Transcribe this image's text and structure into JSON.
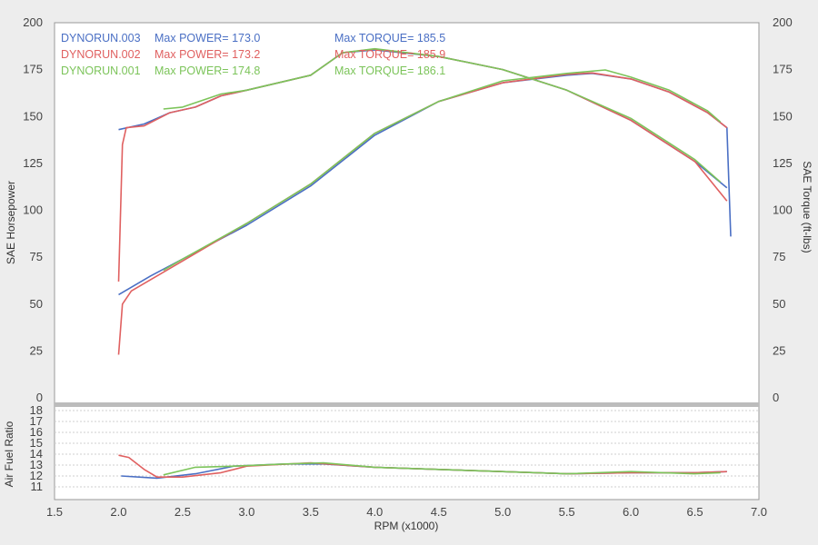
{
  "chart_data": {
    "type": "line",
    "xlabel": "RPM (x1000)",
    "ylabel_left": "SAE Horsepower",
    "ylabel_right": "SAE Torque (ft-lbs)",
    "ylabel_afr": "Air Fuel Ratio",
    "xlim": [
      1.5,
      7.0
    ],
    "x_ticks": [
      "1.5",
      "2.0",
      "2.5",
      "3.0",
      "3.5",
      "4.0",
      "4.5",
      "5.0",
      "5.5",
      "6.0",
      "6.5",
      "7.0"
    ],
    "ylim": [
      0,
      200
    ],
    "y_ticks": [
      "0",
      "25",
      "50",
      "75",
      "100",
      "125",
      "150",
      "175",
      "200"
    ],
    "afr_ylim": [
      10,
      18
    ],
    "afr_ticks": [
      "11",
      "12",
      "13",
      "14",
      "15",
      "16",
      "17",
      "18"
    ],
    "legend": [
      {
        "run": "DYNORUN.003",
        "power": "Max POWER= 173.0",
        "torque": "Max TORQUE= 185.5",
        "color": "#4a6fc4"
      },
      {
        "run": "DYNORUN.002",
        "power": "Max POWER= 173.2",
        "torque": "Max TORQUE= 185.9",
        "color": "#e06060"
      },
      {
        "run": "DYNORUN.001",
        "power": "Max POWER= 174.8",
        "torque": "Max TORQUE= 186.1",
        "color": "#7cc45a"
      }
    ],
    "series": [
      {
        "name": "DYNORUN.003",
        "color": "#4a6fc4",
        "power": [
          [
            2.0,
            55
          ],
          [
            2.25,
            65
          ],
          [
            2.5,
            74
          ],
          [
            3.0,
            92
          ],
          [
            3.5,
            113
          ],
          [
            4.0,
            140
          ],
          [
            4.5,
            158
          ],
          [
            5.0,
            168
          ],
          [
            5.5,
            172
          ],
          [
            5.7,
            173
          ],
          [
            6.0,
            170
          ],
          [
            6.3,
            163
          ],
          [
            6.6,
            152
          ],
          [
            6.75,
            144
          ],
          [
            6.78,
            86
          ]
        ],
        "torque": [
          [
            2.0,
            143
          ],
          [
            2.2,
            146
          ],
          [
            2.4,
            152
          ],
          [
            2.6,
            155
          ],
          [
            2.8,
            161
          ],
          [
            3.0,
            164
          ],
          [
            3.5,
            172
          ],
          [
            3.75,
            184
          ],
          [
            4.0,
            185.5
          ],
          [
            4.5,
            182
          ],
          [
            5.0,
            175
          ],
          [
            5.5,
            164
          ],
          [
            6.0,
            148
          ],
          [
            6.5,
            126
          ],
          [
            6.75,
            112
          ]
        ],
        "afr": [
          [
            2.02,
            12.0
          ],
          [
            2.3,
            11.8
          ],
          [
            2.6,
            12.2
          ],
          [
            2.9,
            12.9
          ],
          [
            3.3,
            13.1
          ],
          [
            3.6,
            13.1
          ],
          [
            4.0,
            12.8
          ],
          [
            4.5,
            12.6
          ],
          [
            5.0,
            12.4
          ],
          [
            5.5,
            12.2
          ],
          [
            6.0,
            12.3
          ],
          [
            6.5,
            12.3
          ],
          [
            6.75,
            12.4
          ]
        ]
      },
      {
        "name": "DYNORUN.002",
        "color": "#e06060",
        "power": [
          [
            2.0,
            23
          ],
          [
            2.03,
            50
          ],
          [
            2.1,
            57
          ],
          [
            2.5,
            73
          ],
          [
            3.0,
            93
          ],
          [
            3.5,
            114
          ],
          [
            4.0,
            141
          ],
          [
            4.5,
            158
          ],
          [
            5.0,
            168
          ],
          [
            5.5,
            172.5
          ],
          [
            5.7,
            173.2
          ],
          [
            6.0,
            170
          ],
          [
            6.3,
            163
          ],
          [
            6.6,
            152
          ],
          [
            6.75,
            144
          ]
        ],
        "torque": [
          [
            2.0,
            62
          ],
          [
            2.03,
            135
          ],
          [
            2.06,
            144
          ],
          [
            2.2,
            145
          ],
          [
            2.4,
            152
          ],
          [
            2.6,
            155
          ],
          [
            2.8,
            161
          ],
          [
            3.0,
            164
          ],
          [
            3.5,
            172
          ],
          [
            3.75,
            184
          ],
          [
            4.0,
            185.9
          ],
          [
            4.5,
            182
          ],
          [
            5.0,
            175
          ],
          [
            5.5,
            164
          ],
          [
            6.0,
            148
          ],
          [
            6.5,
            126
          ],
          [
            6.75,
            105
          ]
        ],
        "afr": [
          [
            2.0,
            13.9
          ],
          [
            2.08,
            13.7
          ],
          [
            2.2,
            12.6
          ],
          [
            2.3,
            11.9
          ],
          [
            2.5,
            11.9
          ],
          [
            2.8,
            12.3
          ],
          [
            3.0,
            12.9
          ],
          [
            3.5,
            13.2
          ],
          [
            4.0,
            12.8
          ],
          [
            4.5,
            12.6
          ],
          [
            5.0,
            12.4
          ],
          [
            5.5,
            12.2
          ],
          [
            6.0,
            12.3
          ],
          [
            6.5,
            12.3
          ],
          [
            6.75,
            12.4
          ]
        ]
      },
      {
        "name": "DYNORUN.001",
        "color": "#7cc45a",
        "power": [
          [
            2.35,
            68
          ],
          [
            2.5,
            74
          ],
          [
            3.0,
            93
          ],
          [
            3.5,
            114
          ],
          [
            4.0,
            141
          ],
          [
            4.5,
            158
          ],
          [
            5.0,
            169
          ],
          [
            5.5,
            173
          ],
          [
            5.8,
            174.8
          ],
          [
            6.0,
            171
          ],
          [
            6.3,
            164
          ],
          [
            6.6,
            153
          ],
          [
            6.7,
            147
          ]
        ],
        "torque": [
          [
            2.35,
            154
          ],
          [
            2.5,
            155
          ],
          [
            2.8,
            162
          ],
          [
            3.0,
            164
          ],
          [
            3.5,
            172
          ],
          [
            3.75,
            184
          ],
          [
            4.0,
            186.1
          ],
          [
            4.5,
            182
          ],
          [
            5.0,
            175
          ],
          [
            5.5,
            164
          ],
          [
            6.0,
            149
          ],
          [
            6.5,
            127
          ],
          [
            6.7,
            115
          ]
        ],
        "afr": [
          [
            2.35,
            12.1
          ],
          [
            2.6,
            12.8
          ],
          [
            2.9,
            12.9
          ],
          [
            3.3,
            13.1
          ],
          [
            3.6,
            13.2
          ],
          [
            4.0,
            12.8
          ],
          [
            4.5,
            12.6
          ],
          [
            5.0,
            12.4
          ],
          [
            5.5,
            12.2
          ],
          [
            6.0,
            12.4
          ],
          [
            6.5,
            12.2
          ],
          [
            6.7,
            12.3
          ]
        ]
      }
    ]
  }
}
